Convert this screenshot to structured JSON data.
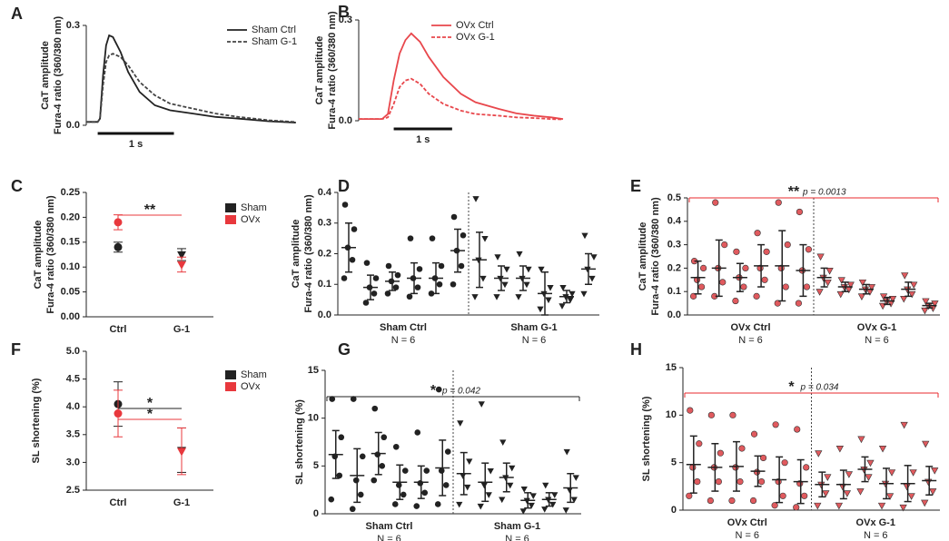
{
  "chart_data": [
    {
      "panel": "A",
      "type": "line",
      "ylabel": [
        "CaT amplitude",
        "Fura-4 ratio (360/380 nm)"
      ],
      "x": [
        0,
        0.15,
        0.18,
        0.22,
        0.26,
        0.3,
        0.35,
        0.45,
        0.55,
        0.7,
        0.9,
        1.1,
        1.4,
        1.7,
        2.0,
        2.4,
        2.75
      ],
      "xlim": [
        0,
        2.8
      ],
      "ylim": [
        0,
        0.3
      ],
      "yticks": [
        {
          "value": 0,
          "label": "0.0"
        },
        0.3
      ],
      "series": [
        {
          "name": "Sham Ctrl",
          "color": "#222222",
          "dashed": false,
          "values": [
            0.01,
            0.01,
            0.02,
            0.15,
            0.24,
            0.27,
            0.265,
            0.22,
            0.16,
            0.1,
            0.06,
            0.045,
            0.035,
            0.025,
            0.02,
            0.012,
            0.008
          ]
        },
        {
          "name": "Sham G-1",
          "color": "#444444",
          "dashed": true,
          "values": [
            0.01,
            0.01,
            0.02,
            0.12,
            0.19,
            0.21,
            0.215,
            0.205,
            0.18,
            0.13,
            0.09,
            0.065,
            0.05,
            0.035,
            0.025,
            0.015,
            0.01
          ]
        }
      ],
      "scalebar": {
        "label": "1 s",
        "length": 1
      }
    },
    {
      "panel": "B",
      "type": "line",
      "ylabel": [
        "CaT amplitude",
        "Fura-4 ratio (360/380 nm)"
      ],
      "x": [
        0,
        0.4,
        0.5,
        0.6,
        0.7,
        0.8,
        0.9,
        1.05,
        1.2,
        1.45,
        1.75,
        2.0,
        2.4,
        2.7,
        3.0,
        3.3,
        3.5
      ],
      "xlim": [
        0,
        3.5
      ],
      "ylim": [
        0,
        0.3
      ],
      "yticks": [
        {
          "value": 0,
          "label": "0.0"
        },
        0.3
      ],
      "series": [
        {
          "name": "OVx Ctrl",
          "color": "#e8474c",
          "dashed": false,
          "values": [
            0.005,
            0.005,
            0.02,
            0.12,
            0.2,
            0.24,
            0.26,
            0.235,
            0.19,
            0.13,
            0.08,
            0.055,
            0.035,
            0.022,
            0.015,
            0.01,
            0.005
          ]
        },
        {
          "name": "OVx G-1",
          "color": "#e8474c",
          "dashed": true,
          "values": [
            0.005,
            0.005,
            0.01,
            0.05,
            0.1,
            0.12,
            0.125,
            0.11,
            0.08,
            0.05,
            0.03,
            0.02,
            0.015,
            0.01,
            0.008,
            0.005,
            0.004
          ]
        }
      ],
      "scalebar": {
        "label": "1 s",
        "length": 1
      }
    },
    {
      "panel": "C",
      "type": "pointrange",
      "ylabel": [
        "CaT amplitude",
        "Fura-4 ratio (360/380 nm)"
      ],
      "categories": [
        "Ctrl",
        "G-1"
      ],
      "markers": [
        "circle",
        "triangle"
      ],
      "ylim": [
        0,
        0.25
      ],
      "yticks": [
        {
          "value": 0,
          "label": "0.00"
        },
        {
          "value": 0.05,
          "label": "0.05"
        },
        {
          "value": 0.1,
          "label": "0.10"
        },
        {
          "value": 0.15,
          "label": "0.15"
        },
        {
          "value": 0.2,
          "label": "0.20"
        },
        {
          "value": 0.25,
          "label": "0.25"
        }
      ],
      "series": [
        {
          "name": "Sham",
          "color": "#222222",
          "values": [
            0.14,
            0.125
          ],
          "errors": [
            0.01,
            0.012
          ]
        },
        {
          "name": "OVx",
          "color": "#e8383d",
          "values": [
            0.19,
            0.105
          ],
          "errors": [
            0.015,
            0.015
          ]
        }
      ],
      "significance": [
        {
          "label": "**",
          "color": "#e8383d"
        }
      ]
    },
    {
      "panel": "D",
      "type": "dot",
      "ylabel": [
        "CaT amplitude",
        "Fura-4 ratio (360/380 nm)"
      ],
      "ylim": [
        0,
        0.4
      ],
      "yticks": [
        {
          "value": 0,
          "label": "0.0"
        },
        0.1,
        0.2,
        0.3,
        0.4
      ],
      "groups": [
        {
          "label": "Sham Ctrl",
          "n": "N = 6",
          "color": "#222222",
          "marker": "circle",
          "columns": [
            {
              "mean": 0.22,
              "sd": 0.08,
              "points": [
                0.12,
                0.18,
                0.22,
                0.28,
                0.36
              ]
            },
            {
              "mean": 0.09,
              "sd": 0.04,
              "points": [
                0.04,
                0.07,
                0.09,
                0.12,
                0.17
              ]
            },
            {
              "mean": 0.11,
              "sd": 0.03,
              "points": [
                0.07,
                0.09,
                0.11,
                0.13,
                0.16
              ]
            },
            {
              "mean": 0.12,
              "sd": 0.05,
              "points": [
                0.06,
                0.09,
                0.12,
                0.15,
                0.25
              ]
            },
            {
              "mean": 0.12,
              "sd": 0.05,
              "points": [
                0.07,
                0.1,
                0.12,
                0.16,
                0.25
              ]
            },
            {
              "mean": 0.21,
              "sd": 0.07,
              "points": [
                0.1,
                0.16,
                0.21,
                0.26,
                0.32
              ]
            }
          ]
        },
        {
          "label": "Sham G-1",
          "n": "N = 6",
          "color": "#222222",
          "marker": "triangle",
          "columns": [
            {
              "mean": 0.18,
              "sd": 0.09,
              "points": [
                0.06,
                0.12,
                0.18,
                0.25,
                0.38
              ]
            },
            {
              "mean": 0.12,
              "sd": 0.04,
              "points": [
                0.06,
                0.1,
                0.12,
                0.15,
                0.19
              ]
            },
            {
              "mean": 0.12,
              "sd": 0.04,
              "points": [
                0.06,
                0.1,
                0.12,
                0.15,
                0.2
              ]
            },
            {
              "mean": 0.07,
              "sd": 0.07,
              "points": [
                0.02,
                0.05,
                0.07,
                0.09,
                0.15
              ]
            },
            {
              "mean": 0.06,
              "sd": 0.02,
              "points": [
                0.03,
                0.05,
                0.06,
                0.07,
                0.09
              ]
            },
            {
              "mean": 0.15,
              "sd": 0.05,
              "points": [
                0.07,
                0.12,
                0.15,
                0.19,
                0.26
              ]
            }
          ]
        }
      ],
      "significance": null
    },
    {
      "panel": "E",
      "type": "dot",
      "ylabel": [
        "CaT amplitude",
        "Fura-4 ratio (360/380 nm)"
      ],
      "ylim": [
        0,
        0.5
      ],
      "yticks": [
        {
          "value": 0,
          "label": "0.0"
        },
        0.1,
        0.2,
        0.3,
        0.4,
        0.5
      ],
      "groups": [
        {
          "label": "OVx Ctrl",
          "n": "N = 6",
          "color": "#e05a5e",
          "marker": "circle",
          "columns": [
            {
              "mean": 0.16,
              "sd": 0.07,
              "points": [
                0.08,
                0.12,
                0.15,
                0.2,
                0.23
              ]
            },
            {
              "mean": 0.2,
              "sd": 0.12,
              "points": [
                0.08,
                0.14,
                0.2,
                0.3,
                0.48
              ]
            },
            {
              "mean": 0.16,
              "sd": 0.06,
              "points": [
                0.06,
                0.12,
                0.16,
                0.2,
                0.27
              ]
            },
            {
              "mean": 0.21,
              "sd": 0.09,
              "points": [
                0.08,
                0.15,
                0.2,
                0.27,
                0.35
              ]
            },
            {
              "mean": 0.21,
              "sd": 0.15,
              "points": [
                0.05,
                0.12,
                0.2,
                0.3,
                0.48
              ]
            },
            {
              "mean": 0.19,
              "sd": 0.11,
              "points": [
                0.05,
                0.12,
                0.19,
                0.28,
                0.44
              ]
            }
          ]
        },
        {
          "label": "OVx G-1",
          "n": "N = 6",
          "color": "#e05a5e",
          "marker": "triangle",
          "columns": [
            {
              "mean": 0.16,
              "sd": 0.04,
              "points": [
                0.1,
                0.14,
                0.16,
                0.19,
                0.25
              ]
            },
            {
              "mean": 0.12,
              "sd": 0.02,
              "points": [
                0.09,
                0.11,
                0.12,
                0.13,
                0.15
              ]
            },
            {
              "mean": 0.11,
              "sd": 0.02,
              "points": [
                0.08,
                0.1,
                0.11,
                0.12,
                0.14
              ]
            },
            {
              "mean": 0.06,
              "sd": 0.015,
              "points": [
                0.04,
                0.05,
                0.06,
                0.07,
                0.08
              ]
            },
            {
              "mean": 0.11,
              "sd": 0.03,
              "points": [
                0.07,
                0.09,
                0.11,
                0.13,
                0.17
              ]
            },
            {
              "mean": 0.04,
              "sd": 0.01,
              "points": [
                0.02,
                0.03,
                0.04,
                0.05,
                0.06
              ]
            }
          ]
        }
      ],
      "significance": {
        "label": "**",
        "p": "p = 0.0013",
        "color": "#e8282e"
      }
    },
    {
      "panel": "F",
      "type": "pointrange",
      "ylabel": [
        "SL shortening (%)"
      ],
      "categories": [
        "Ctrl",
        "G-1"
      ],
      "markers": [
        "circle",
        "triangle"
      ],
      "ylim": [
        2.5,
        5.0
      ],
      "yticks": [
        2.5,
        {
          "value": 3,
          "label": "3.0"
        },
        3.5,
        {
          "value": 4,
          "label": "4.0"
        },
        4.5,
        {
          "value": 5,
          "label": "5.0"
        }
      ],
      "series": [
        {
          "name": "Sham",
          "color": "#222222",
          "values": [
            4.05,
            3.22
          ],
          "errors": [
            0.4,
            0.4
          ]
        },
        {
          "name": "OVx",
          "color": "#e8383d",
          "values": [
            3.88,
            3.2
          ],
          "errors": [
            0.42,
            0.42
          ]
        }
      ],
      "significance": [
        {
          "label": "*",
          "color": "#222222"
        },
        {
          "label": "*",
          "color": "#e8383d"
        }
      ]
    },
    {
      "panel": "G",
      "type": "dot",
      "ylabel": [
        "SL shortening (%)"
      ],
      "ylim": [
        0,
        15
      ],
      "yticks": [
        0,
        5,
        10,
        15
      ],
      "groups": [
        {
          "label": "Sham Ctrl",
          "n": "N = 6",
          "color": "#222222",
          "marker": "circle",
          "columns": [
            {
              "mean": 6.2,
              "sd": 2.5,
              "points": [
                1.5,
                4,
                6,
                8,
                12
              ]
            },
            {
              "mean": 4.0,
              "sd": 2.8,
              "points": [
                0.5,
                2,
                3.5,
                6,
                12
              ]
            },
            {
              "mean": 6.3,
              "sd": 2.2,
              "points": [
                3.5,
                5,
                6.2,
                8,
                11
              ]
            },
            {
              "mean": 3.3,
              "sd": 1.8,
              "points": [
                1,
                2,
                3,
                4.5,
                7
              ]
            },
            {
              "mean": 3.3,
              "sd": 1.7,
              "points": [
                0.8,
                2.2,
                3.2,
                4.5,
                8.5
              ]
            },
            {
              "mean": 4.8,
              "sd": 2.9,
              "points": [
                1,
                3,
                4.5,
                6.5,
                13
              ]
            }
          ]
        },
        {
          "label": "Sham G-1",
          "n": "N = 6",
          "color": "#222222",
          "marker": "triangle",
          "columns": [
            {
              "mean": 4.2,
              "sd": 2.2,
              "points": [
                1,
                2.8,
                4,
                5.5,
                9.5
              ]
            },
            {
              "mean": 3.3,
              "sd": 2.0,
              "points": [
                0.8,
                2,
                3,
                4.5,
                11.5
              ]
            },
            {
              "mean": 3.8,
              "sd": 1.5,
              "points": [
                1.5,
                3,
                3.8,
                4.8,
                7.5
              ]
            },
            {
              "mean": 1.4,
              "sd": 0.8,
              "points": [
                0.3,
                0.9,
                1.4,
                1.9,
                2.6
              ]
            },
            {
              "mean": 1.5,
              "sd": 0.7,
              "points": [
                0.5,
                1,
                1.5,
                2,
                3
              ]
            },
            {
              "mean": 2.7,
              "sd": 1.5,
              "points": [
                0.4,
                1.5,
                2.5,
                3.8,
                6.5
              ]
            }
          ]
        }
      ],
      "significance": {
        "label": "*",
        "p": "p = 0.042",
        "color": "#222222"
      }
    },
    {
      "panel": "H",
      "type": "dot",
      "ylabel": [
        "SL shortening (%)"
      ],
      "ylim": [
        0,
        15
      ],
      "yticks": [
        0,
        5,
        10,
        15
      ],
      "groups": [
        {
          "label": "OVx Ctrl",
          "n": "N = 6",
          "color": "#e05a5e",
          "marker": "circle",
          "columns": [
            {
              "mean": 4.8,
              "sd": 3.0,
              "points": [
                1.5,
                3,
                4.5,
                7,
                10.5
              ]
            },
            {
              "mean": 4.5,
              "sd": 2.5,
              "points": [
                1,
                3,
                4.5,
                6,
                10
              ]
            },
            {
              "mean": 4.6,
              "sd": 2.6,
              "points": [
                1,
                3,
                4.5,
                6.5,
                10
              ]
            },
            {
              "mean": 4.1,
              "sd": 1.6,
              "points": [
                1,
                3,
                4,
                5.5,
                8
              ]
            },
            {
              "mean": 3.2,
              "sd": 2.4,
              "points": [
                0.5,
                1.5,
                3,
                5,
                9
              ]
            },
            {
              "mean": 3.0,
              "sd": 2.3,
              "points": [
                0.3,
                1.5,
                2.8,
                4.5,
                8.5
              ]
            }
          ]
        },
        {
          "label": "OVx G-1",
          "n": "N = 6",
          "color": "#e05a5e",
          "marker": "triangle",
          "columns": [
            {
              "mean": 2.7,
              "sd": 1.3,
              "points": [
                0.5,
                1.8,
                2.7,
                3.5,
                6
              ]
            },
            {
              "mean": 2.7,
              "sd": 1.5,
              "points": [
                0.5,
                1.8,
                2.5,
                3.8,
                6.5
              ]
            },
            {
              "mean": 4.3,
              "sd": 1.3,
              "points": [
                2,
                3.5,
                4.3,
                5,
                7.5
              ]
            },
            {
              "mean": 2.8,
              "sd": 1.6,
              "points": [
                0.5,
                1.5,
                2.8,
                4,
                6.5
              ]
            },
            {
              "mean": 2.8,
              "sd": 1.9,
              "points": [
                0.3,
                1.5,
                2.5,
                4,
                9
              ]
            },
            {
              "mean": 3.1,
              "sd": 1.5,
              "points": [
                0.8,
                2,
                3,
                4.2,
                7
              ]
            }
          ]
        }
      ],
      "significance": {
        "label": "*",
        "p": "p = 0.034",
        "color": "#e8282e"
      }
    }
  ]
}
